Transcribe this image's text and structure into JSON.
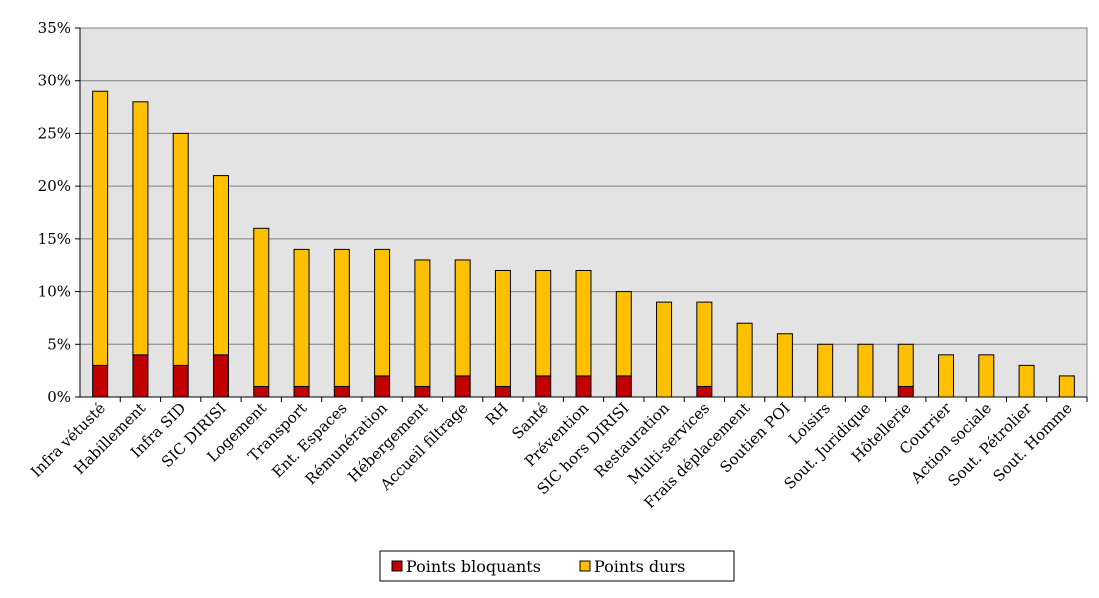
{
  "chart_data": {
    "type": "bar",
    "stacked": true,
    "title": "",
    "xlabel": "",
    "ylabel": "",
    "ylim": [
      0,
      35
    ],
    "yunit": "%",
    "ytick_step": 5,
    "grid": true,
    "legend_position": "bottom-center",
    "categories": [
      "Infra vétusté",
      "Habillement",
      "Infra SID",
      "SIC DIRISI",
      "Logement",
      "Transport",
      "Ent. Espaces",
      "Rémunération",
      "Hébergement",
      "Accueil filtrage",
      "RH",
      "Santé",
      "Prévention",
      "SIC hors DIRISI",
      "Restauration",
      "Multi-services",
      "Frais déplacement",
      "Soutien POI",
      "Loisirs",
      "Sout. Juridique",
      "Hôtellerie",
      "Courrier",
      "Action sociale",
      "Sout. Pétrolier",
      "Sout. Homme"
    ],
    "series": [
      {
        "name": "Points bloquants",
        "color": "#c00000",
        "values": [
          3,
          4,
          3,
          4,
          1,
          1,
          1,
          2,
          1,
          2,
          1,
          2,
          2,
          2,
          0,
          1,
          0,
          0,
          0,
          0,
          1,
          0,
          0,
          0,
          0
        ]
      },
      {
        "name": "Points durs",
        "color": "#ffc000",
        "values": [
          26,
          24,
          22,
          17,
          15,
          13,
          13,
          12,
          12,
          11,
          11,
          10,
          10,
          8,
          9,
          8,
          7,
          6,
          5,
          5,
          4,
          4,
          4,
          3,
          2
        ]
      }
    ]
  }
}
